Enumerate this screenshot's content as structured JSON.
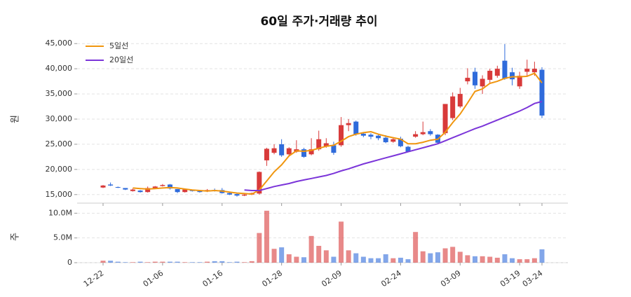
{
  "chart_data": {
    "type": "candlestick",
    "title": "60일 주가·거래량 추이",
    "ylabel": "원",
    "volume_ylabel": "주",
    "categories": [
      "12-22",
      null,
      null,
      null,
      null,
      null,
      null,
      null,
      "01-06",
      null,
      null,
      null,
      null,
      null,
      null,
      null,
      "01-16",
      null,
      null,
      null,
      null,
      null,
      null,
      null,
      "01-28",
      null,
      null,
      null,
      null,
      null,
      null,
      null,
      "02-09",
      null,
      null,
      null,
      null,
      null,
      null,
      null,
      "02-24",
      null,
      null,
      null,
      null,
      null,
      null,
      null,
      "03-09",
      null,
      null,
      null,
      null,
      null,
      null,
      null,
      "03-19",
      null,
      null,
      "03-24"
    ],
    "open": [
      16400,
      17000,
      16500,
      16300,
      15700,
      15800,
      15500,
      16300,
      16700,
      17000,
      16100,
      15500,
      15900,
      15700,
      15600,
      15900,
      15900,
      15300,
      15100,
      14800,
      15000,
      15200,
      21800,
      23300,
      25000,
      23000,
      23500,
      24000,
      23000,
      24000,
      24500,
      24800,
      24800,
      28800,
      29500,
      27100,
      26900,
      26700,
      26300,
      25500,
      26100,
      24500,
      26500,
      27000,
      27600,
      26900,
      27200,
      30200,
      32500,
      37500,
      39400,
      36500,
      37800,
      38600,
      41600,
      39300,
      36500,
      39400,
      39300,
      39800
    ],
    "high": [
      16900,
      17400,
      16600,
      16300,
      16200,
      15900,
      16600,
      16700,
      17100,
      17100,
      16100,
      16200,
      16000,
      15900,
      16100,
      16200,
      16300,
      15500,
      15200,
      15100,
      15400,
      19600,
      24300,
      25000,
      26000,
      24400,
      25800,
      24300,
      26200,
      27700,
      26200,
      25500,
      30400,
      30000,
      29700,
      27400,
      27200,
      26900,
      26800,
      26400,
      26500,
      24700,
      27600,
      29500,
      28000,
      27000,
      33000,
      35300,
      36200,
      40100,
      40200,
      38700,
      40000,
      40600,
      44900,
      40200,
      39400,
      41800,
      41400,
      40300
    ],
    "low": [
      16300,
      16700,
      16300,
      15900,
      15600,
      15400,
      15400,
      16200,
      16600,
      16000,
      15300,
      15400,
      15600,
      15400,
      15500,
      15600,
      15200,
      14900,
      14600,
      14700,
      14900,
      15000,
      20700,
      23000,
      22500,
      22800,
      23300,
      22300,
      22800,
      23700,
      24300,
      22900,
      24500,
      27600,
      26700,
      26400,
      26000,
      25800,
      25200,
      25300,
      24400,
      23400,
      26300,
      26800,
      26700,
      25000,
      26800,
      29800,
      32200,
      36900,
      36000,
      35000,
      37000,
      38200,
      37800,
      36700,
      36000,
      38400,
      38600,
      30200
    ],
    "close": [
      16800,
      16800,
      16400,
      16000,
      16000,
      15500,
      16300,
      16600,
      16900,
      16200,
      15500,
      16000,
      15700,
      15500,
      15900,
      15800,
      15300,
      15000,
      14800,
      15000,
      15300,
      19500,
      24100,
      24200,
      22800,
      24200,
      24000,
      22500,
      24000,
      26000,
      25200,
      23300,
      28800,
      29200,
      27000,
      26700,
      26500,
      26200,
      25400,
      26000,
      24600,
      23500,
      27000,
      27400,
      27000,
      25300,
      33000,
      34500,
      35000,
      38200,
      36700,
      38000,
      39600,
      40000,
      38000,
      37900,
      38600,
      40000,
      40000,
      30700
    ],
    "up_color": "#d83a3a",
    "down_color": "#2f6bdb",
    "series": [
      {
        "name": "5일선",
        "color": "#f0960f",
        "values": [
          null,
          null,
          null,
          null,
          16300,
          16200,
          16100,
          16200,
          16300,
          16400,
          16300,
          16100,
          15900,
          15800,
          15700,
          15800,
          15700,
          15500,
          15300,
          15200,
          15100,
          15900,
          17700,
          19500,
          20900,
          22700,
          23700,
          23600,
          23800,
          24200,
          24600,
          24800,
          25600,
          26500,
          27000,
          27300,
          27500,
          27000,
          26600,
          26300,
          26000,
          25100,
          25100,
          25400,
          25800,
          26000,
          27400,
          29300,
          31000,
          33200,
          35500,
          36000,
          37100,
          37500,
          38100,
          38400,
          38400,
          38500,
          39100,
          37200
        ]
      },
      {
        "name": "20일선",
        "color": "#7b35d9",
        "values": [
          null,
          null,
          null,
          null,
          null,
          null,
          null,
          null,
          null,
          null,
          null,
          null,
          null,
          null,
          null,
          null,
          null,
          null,
          null,
          15900,
          15800,
          15800,
          16200,
          16600,
          16900,
          17200,
          17600,
          17900,
          18200,
          18500,
          18800,
          19200,
          19700,
          20100,
          20600,
          21100,
          21500,
          21900,
          22300,
          22700,
          23100,
          23500,
          23900,
          24300,
          24700,
          25100,
          25700,
          26300,
          26900,
          27500,
          28100,
          28600,
          29200,
          29800,
          30400,
          31000,
          31600,
          32300,
          33100,
          33500
        ]
      }
    ],
    "volume": [
      400000,
      400000,
      200000,
      100000,
      100000,
      200000,
      100000,
      200000,
      200000,
      200000,
      200000,
      100000,
      100000,
      100000,
      200000,
      300000,
      300000,
      100000,
      200000,
      100000,
      300000,
      6000000,
      10500000,
      2800000,
      3100000,
      1700000,
      1200000,
      1100000,
      5400000,
      3400000,
      2500000,
      1200000,
      8300000,
      2500000,
      1900000,
      1200000,
      900000,
      900000,
      1700000,
      900000,
      1000000,
      700000,
      6200000,
      2300000,
      1900000,
      2100000,
      2900000,
      3200000,
      2200000,
      1500000,
      1300000,
      1300000,
      1200000,
      1000000,
      1700000,
      900000,
      700000,
      700000,
      900000,
      2700000
    ],
    "ylim": [
      13300,
      46700
    ],
    "yticks": [
      {
        "value": 15000,
        "label": "15,000"
      },
      {
        "value": 20000,
        "label": "20,000"
      },
      {
        "value": 25000,
        "label": "25,000"
      },
      {
        "value": 30000,
        "label": "30,000"
      },
      {
        "value": 35000,
        "label": "35,000"
      },
      {
        "value": 40000,
        "label": "40,000"
      },
      {
        "value": 45000,
        "label": "45,000"
      }
    ],
    "volume_ylim": [
      0,
      10900000
    ],
    "volume_yticks": [
      0,
      {
        "value": 5000000,
        "label": "5.0M"
      },
      {
        "value": 10000000,
        "label": "10.0M"
      }
    ],
    "grid": true,
    "legend": "upper left"
  }
}
